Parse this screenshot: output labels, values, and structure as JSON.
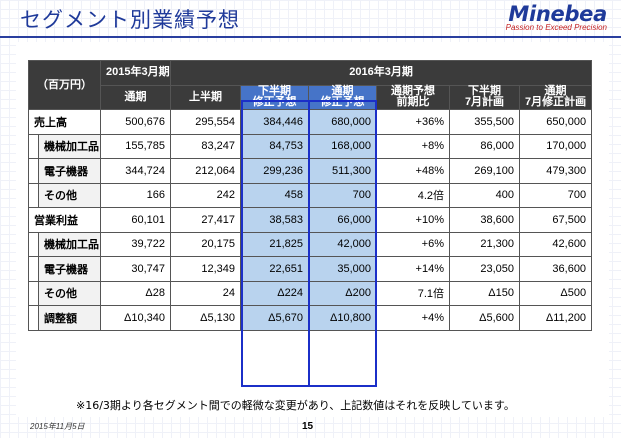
{
  "slide": {
    "title": "セグメント別業績予想",
    "logo_name": "Minebea",
    "logo_tagline": "Passion to Exceed Precision",
    "note": "※16/3期より各セグメント間での軽微な変更があり、上記数値はそれを反映しています。",
    "date": "2015年11月5日",
    "page_number": "15"
  },
  "table": {
    "unit_label": "（百万円）",
    "period_2015": "2015年3月期",
    "period_2016": "2016年3月期",
    "columns": [
      "通期",
      "上半期",
      "下半期\n修正予想",
      "通期\n修正予想",
      "通期予想\n前期比",
      "下半期\n7月計画",
      "通期\n7月修正計画"
    ],
    "rows": [
      {
        "label": "売上高",
        "level": "cat",
        "values": [
          "500,676",
          "295,554",
          "384,446",
          "680,000",
          "+36%",
          "355,500",
          "650,000"
        ]
      },
      {
        "label": "機械加工品",
        "level": "sub",
        "values": [
          "155,785",
          "83,247",
          "84,753",
          "168,000",
          "+8%",
          "86,000",
          "170,000"
        ]
      },
      {
        "label": "電子機器",
        "level": "sub",
        "values": [
          "344,724",
          "212,064",
          "299,236",
          "511,300",
          "+48%",
          "269,100",
          "479,300"
        ]
      },
      {
        "label": "その他",
        "level": "sub",
        "values": [
          "166",
          "242",
          "458",
          "700",
          "4.2倍",
          "400",
          "700"
        ]
      },
      {
        "label": "営業利益",
        "level": "cat",
        "values": [
          "60,101",
          "27,417",
          "38,583",
          "66,000",
          "+10%",
          "38,600",
          "67,500"
        ]
      },
      {
        "label": "機械加工品",
        "level": "sub",
        "values": [
          "39,722",
          "20,175",
          "21,825",
          "42,000",
          "+6%",
          "21,300",
          "42,600"
        ]
      },
      {
        "label": "電子機器",
        "level": "sub",
        "values": [
          "30,747",
          "12,349",
          "22,651",
          "35,000",
          "+14%",
          "23,050",
          "36,600"
        ]
      },
      {
        "label": "その他",
        "level": "sub",
        "values": [
          "Δ28",
          "24",
          "Δ224",
          "Δ200",
          "7.1倍",
          "Δ150",
          "Δ500"
        ]
      },
      {
        "label": "調整額",
        "level": "sub",
        "values": [
          "Δ10,340",
          "Δ5,130",
          "Δ5,670",
          "Δ10,800",
          "+4%",
          "Δ5,600",
          "Δ11,200"
        ]
      }
    ]
  }
}
